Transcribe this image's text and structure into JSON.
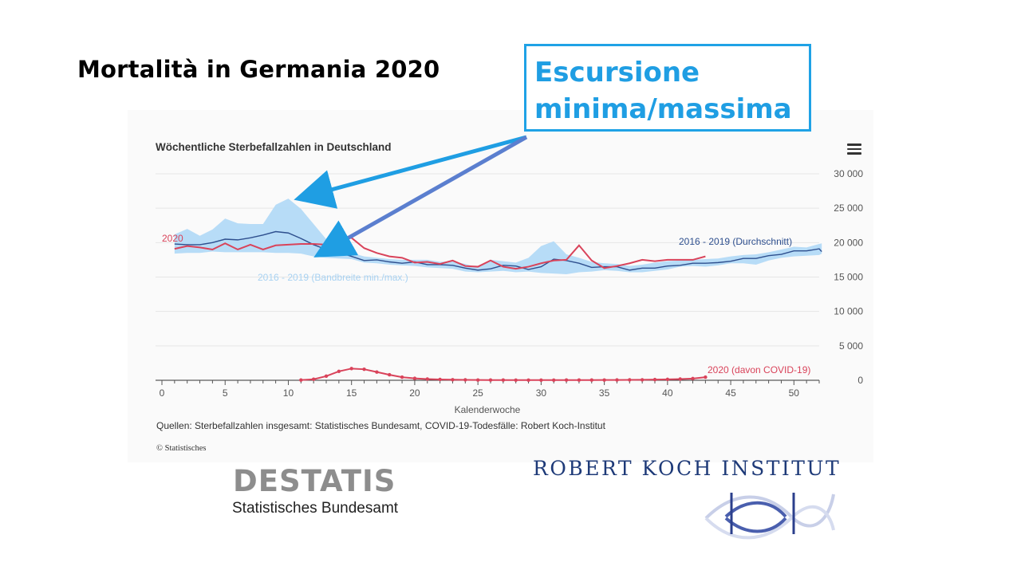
{
  "slide": {
    "title": "Mortalità in Germania 2020",
    "callout_line1": "Escursione",
    "callout_line2": "minima/massima"
  },
  "chart_data": {
    "type": "line",
    "title": "Wöchentliche Sterbefallzahlen in Deutschland",
    "xlabel": "Kalenderwoche",
    "ylabel": "",
    "xlim": [
      0,
      52
    ],
    "ylim": [
      0,
      30000
    ],
    "x_ticks": [
      0,
      5,
      10,
      15,
      20,
      25,
      30,
      35,
      40,
      45,
      50
    ],
    "y_ticks": [
      0,
      5000,
      10000,
      15000,
      20000,
      25000,
      30000
    ],
    "y_tick_labels": [
      "0",
      "5 000",
      "10 000",
      "15 000",
      "20 000",
      "25 000",
      "30 000"
    ],
    "grid": "horizontal",
    "weeks": [
      1,
      2,
      3,
      4,
      5,
      6,
      7,
      8,
      9,
      10,
      11,
      12,
      13,
      14,
      15,
      16,
      17,
      18,
      19,
      20,
      21,
      22,
      23,
      24,
      25,
      26,
      27,
      28,
      29,
      30,
      31,
      32,
      33,
      34,
      35,
      36,
      37,
      38,
      39,
      40,
      41,
      42,
      43,
      44,
      45,
      46,
      47,
      48,
      49,
      50,
      51,
      52,
      53
    ],
    "series": [
      {
        "name": "2016 - 2019 (Durchschnitt)",
        "color": "#2e4f8e",
        "values": [
          19800,
          19700,
          19700,
          20000,
          20500,
          20400,
          20700,
          21100,
          21600,
          21400,
          20600,
          19700,
          19000,
          18600,
          18000,
          17400,
          17500,
          17200,
          17000,
          17200,
          16800,
          16800,
          16700,
          16300,
          16000,
          16200,
          16700,
          16600,
          16100,
          16500,
          17600,
          17400,
          17000,
          16400,
          16500,
          16500,
          16000,
          16300,
          16300,
          16600,
          16700,
          17000,
          17000,
          17100,
          17300,
          17700,
          17700,
          18100,
          18300,
          18800,
          18800,
          19100,
          18700
        ]
      },
      {
        "name": "2020",
        "color": "#d9435a",
        "values": [
          19100,
          19500,
          19300,
          19000,
          19900,
          19000,
          19700,
          19000,
          19600,
          19700,
          19800,
          19800,
          19700,
          20400,
          20700,
          19200,
          18500,
          18000,
          17800,
          17100,
          17200,
          16900,
          17400,
          16600,
          16500,
          17400,
          16500,
          16200,
          16500,
          17000,
          17400,
          17500,
          19600,
          17400,
          16300,
          16600,
          17000,
          17500,
          17300,
          17500,
          17500,
          17500,
          18000
        ]
      },
      {
        "name": "2016 - 2019 (Bandbreite min./max.)",
        "color": "#b3daf7",
        "min": [
          18400,
          18500,
          18500,
          18700,
          18600,
          18600,
          18600,
          18600,
          18500,
          18500,
          18400,
          18000,
          17800,
          17700,
          17600,
          17100,
          17000,
          16800,
          16700,
          16600,
          16400,
          16300,
          16200,
          15800,
          15700,
          15800,
          15900,
          15700,
          15800,
          15600,
          15500,
          15400,
          15700,
          15800,
          16000,
          15900,
          15700,
          15700,
          15900,
          16100,
          16500,
          16600,
          16500,
          16700,
          17000,
          17000,
          16800,
          17400,
          17800,
          18000,
          18100,
          18200,
          18400
        ],
        "max": [
          21200,
          22000,
          21000,
          21900,
          23500,
          22800,
          22700,
          22700,
          25500,
          26400,
          24900,
          22700,
          20500,
          19400,
          18500,
          18000,
          17800,
          17600,
          17500,
          17500,
          17500,
          17200,
          17300,
          16900,
          16400,
          17500,
          17300,
          17100,
          17800,
          19500,
          20200,
          18300,
          17800,
          17200,
          17000,
          16900,
          16600,
          16800,
          17100,
          17300,
          17400,
          17500,
          17600,
          17700,
          18000,
          18200,
          18300,
          18600,
          19000,
          19400,
          19300,
          19800,
          19900
        ]
      },
      {
        "name": "2020 (davon COVID-19)",
        "color": "#d9435a",
        "weeks": [
          11,
          12,
          13,
          14,
          15,
          16,
          17,
          18,
          19,
          20,
          21,
          22,
          23,
          24,
          25,
          26,
          27,
          28,
          29,
          30,
          31,
          32,
          33,
          34,
          35,
          36,
          37,
          38,
          39,
          40,
          41,
          42,
          43
        ],
        "values": [
          30,
          150,
          600,
          1300,
          1700,
          1600,
          1200,
          800,
          450,
          280,
          180,
          120,
          80,
          60,
          40,
          30,
          30,
          25,
          25,
          25,
          25,
          30,
          30,
          30,
          40,
          50,
          60,
          70,
          100,
          130,
          180,
          250,
          450
        ]
      }
    ],
    "series_labels": {
      "avg": "2016 - 2019 (Durchschnitt)",
      "y2020": "2020",
      "band": "2016 - 2019 (Bandbreite min./max.)",
      "covid": "2020 (davon COVID-19)"
    },
    "source": "Quellen: Sterbefallzahlen insgesamt: Statistisches Bundesamt, COVID-19-Todesfälle: Robert Koch-Institut",
    "credit": "© Statistisches"
  },
  "logos": {
    "destatis_word": "DESTATIS",
    "destatis_sub": "Statistisches Bundesamt",
    "rki": "ROBERT KOCH INSTITUT"
  },
  "colors": {
    "callout": "#1fa2e6",
    "arrow_light": "#1f9ee3",
    "arrow_dark": "#5b7fcf"
  }
}
